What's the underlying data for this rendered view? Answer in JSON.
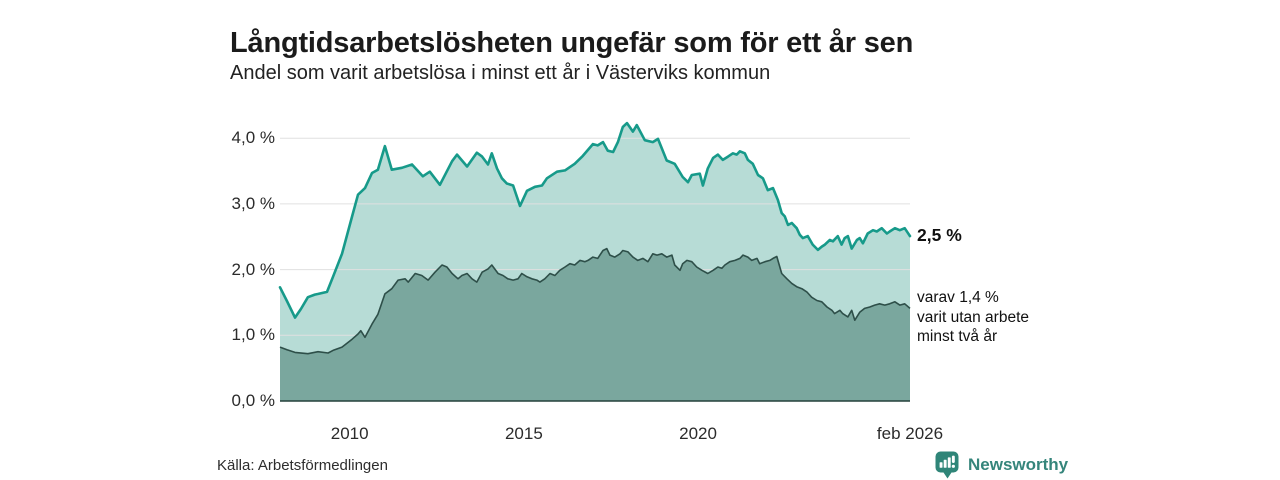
{
  "title": "Långtidsarbetslösheten ungefär som för ett år sen",
  "subtitle": "Andel som varit arbetslösa i minst ett år i Västerviks kommun",
  "source": "Källa: Arbetsförmedlingen",
  "brand": {
    "name": "Newsworthy",
    "icon": "newsworthy-pin-chart-icon",
    "color": "#35857b"
  },
  "colors": {
    "gridline": "#e0e0e0",
    "axis": "#25413c",
    "tick_text": "#2b2b2b",
    "title_text": "#1b1b1b"
  },
  "chart_data": {
    "type": "area",
    "title": "Långtidsarbetslösheten ungefär som för ett år sen",
    "subtitle": "Andel som varit arbetslösa i minst ett år i Västerviks kommun",
    "x_domain": [
      2008.0,
      2026.083
    ],
    "ylim": [
      0,
      4.43
    ],
    "grid": "horizontal",
    "y_gridlines": [
      1,
      2,
      3,
      4
    ],
    "y_ticks": [
      {
        "label": "0,0 %",
        "v": 0
      },
      {
        "label": "1,0 %",
        "v": 1
      },
      {
        "label": "2,0 %",
        "v": 2
      },
      {
        "label": "3,0 %",
        "v": 3
      },
      {
        "label": "4,0 %",
        "v": 4
      }
    ],
    "x_ticks": [
      {
        "label": "2010",
        "t": 2010
      },
      {
        "label": "2015",
        "t": 2015
      },
      {
        "label": "2020",
        "t": 2020
      },
      {
        "label": "feb 2026",
        "t": 2026.083
      }
    ],
    "end_labels": {
      "total": "2,5 %",
      "two_years_1": "varav 1,4 %",
      "two_years_2": "varit utan arbete",
      "two_years_3": "minst två år"
    },
    "series": [
      {
        "name": "andel_minst_ett_ar",
        "last_value": "2,5 %",
        "line": "#179a8a",
        "fill": "#b7dcd6",
        "points": [
          [
            2008.0,
            1.73
          ],
          [
            2008.2,
            1.52
          ],
          [
            2008.43,
            1.27
          ],
          [
            2008.6,
            1.4
          ],
          [
            2008.8,
            1.58
          ],
          [
            2009.0,
            1.62
          ],
          [
            2009.1,
            1.63
          ],
          [
            2009.35,
            1.66
          ],
          [
            2009.52,
            1.89
          ],
          [
            2009.78,
            2.24
          ],
          [
            2010.07,
            2.81
          ],
          [
            2010.24,
            3.14
          ],
          [
            2010.44,
            3.24
          ],
          [
            2010.64,
            3.47
          ],
          [
            2010.81,
            3.52
          ],
          [
            2011.01,
            3.88
          ],
          [
            2011.21,
            3.52
          ],
          [
            2011.5,
            3.55
          ],
          [
            2011.79,
            3.6
          ],
          [
            2012.1,
            3.42
          ],
          [
            2012.3,
            3.49
          ],
          [
            2012.59,
            3.29
          ],
          [
            2012.94,
            3.65
          ],
          [
            2013.08,
            3.75
          ],
          [
            2013.37,
            3.57
          ],
          [
            2013.65,
            3.78
          ],
          [
            2013.8,
            3.72
          ],
          [
            2013.97,
            3.6
          ],
          [
            2014.08,
            3.77
          ],
          [
            2014.23,
            3.54
          ],
          [
            2014.37,
            3.39
          ],
          [
            2014.51,
            3.31
          ],
          [
            2014.69,
            3.28
          ],
          [
            2014.89,
            2.97
          ],
          [
            2015.09,
            3.2
          ],
          [
            2015.32,
            3.26
          ],
          [
            2015.52,
            3.28
          ],
          [
            2015.66,
            3.39
          ],
          [
            2015.95,
            3.49
          ],
          [
            2016.18,
            3.51
          ],
          [
            2016.46,
            3.61
          ],
          [
            2016.69,
            3.73
          ],
          [
            2016.98,
            3.91
          ],
          [
            2017.12,
            3.89
          ],
          [
            2017.27,
            3.94
          ],
          [
            2017.41,
            3.81
          ],
          [
            2017.56,
            3.79
          ],
          [
            2017.7,
            3.94
          ],
          [
            2017.84,
            4.17
          ],
          [
            2017.96,
            4.23
          ],
          [
            2018.13,
            4.1
          ],
          [
            2018.24,
            4.2
          ],
          [
            2018.47,
            3.97
          ],
          [
            2018.7,
            3.94
          ],
          [
            2018.85,
            3.99
          ],
          [
            2019.1,
            3.66
          ],
          [
            2019.33,
            3.61
          ],
          [
            2019.56,
            3.41
          ],
          [
            2019.71,
            3.33
          ],
          [
            2019.82,
            3.44
          ],
          [
            2020.05,
            3.46
          ],
          [
            2020.14,
            3.28
          ],
          [
            2020.28,
            3.54
          ],
          [
            2020.43,
            3.7
          ],
          [
            2020.57,
            3.75
          ],
          [
            2020.71,
            3.67
          ],
          [
            2020.86,
            3.72
          ],
          [
            2021.0,
            3.77
          ],
          [
            2021.11,
            3.75
          ],
          [
            2021.2,
            3.8
          ],
          [
            2021.34,
            3.77
          ],
          [
            2021.43,
            3.67
          ],
          [
            2021.57,
            3.61
          ],
          [
            2021.72,
            3.44
          ],
          [
            2021.86,
            3.39
          ],
          [
            2022.0,
            3.21
          ],
          [
            2022.15,
            3.24
          ],
          [
            2022.29,
            3.06
          ],
          [
            2022.4,
            2.86
          ],
          [
            2022.49,
            2.81
          ],
          [
            2022.58,
            2.68
          ],
          [
            2022.69,
            2.71
          ],
          [
            2022.83,
            2.63
          ],
          [
            2022.92,
            2.53
          ],
          [
            2023.01,
            2.48
          ],
          [
            2023.15,
            2.51
          ],
          [
            2023.29,
            2.38
          ],
          [
            2023.44,
            2.3
          ],
          [
            2023.55,
            2.35
          ],
          [
            2023.64,
            2.38
          ],
          [
            2023.78,
            2.45
          ],
          [
            2023.87,
            2.43
          ],
          [
            2024.01,
            2.51
          ],
          [
            2024.12,
            2.38
          ],
          [
            2024.21,
            2.48
          ],
          [
            2024.3,
            2.51
          ],
          [
            2024.41,
            2.32
          ],
          [
            2024.56,
            2.45
          ],
          [
            2024.64,
            2.48
          ],
          [
            2024.73,
            2.4
          ],
          [
            2024.87,
            2.55
          ],
          [
            2025.02,
            2.6
          ],
          [
            2025.13,
            2.58
          ],
          [
            2025.27,
            2.63
          ],
          [
            2025.42,
            2.55
          ],
          [
            2025.5,
            2.58
          ],
          [
            2025.65,
            2.63
          ],
          [
            2025.79,
            2.6
          ],
          [
            2025.93,
            2.63
          ],
          [
            2026.02,
            2.56
          ],
          [
            2026.083,
            2.51
          ]
        ]
      },
      {
        "name": "andel_minst_tva_ar",
        "last_value": "1,4 %",
        "line": "#2e4f49",
        "fill": "#7aa79e",
        "points": [
          [
            2008.0,
            0.82
          ],
          [
            2008.2,
            0.78
          ],
          [
            2008.43,
            0.74
          ],
          [
            2008.8,
            0.72
          ],
          [
            2009.09,
            0.75
          ],
          [
            2009.38,
            0.73
          ],
          [
            2009.52,
            0.77
          ],
          [
            2009.78,
            0.82
          ],
          [
            2010.07,
            0.94
          ],
          [
            2010.24,
            1.02
          ],
          [
            2010.32,
            1.07
          ],
          [
            2010.44,
            0.97
          ],
          [
            2010.64,
            1.17
          ],
          [
            2010.81,
            1.32
          ],
          [
            2011.01,
            1.63
          ],
          [
            2011.21,
            1.71
          ],
          [
            2011.39,
            1.84
          ],
          [
            2011.59,
            1.86
          ],
          [
            2011.68,
            1.81
          ],
          [
            2011.88,
            1.94
          ],
          [
            2012.07,
            1.91
          ],
          [
            2012.25,
            1.84
          ],
          [
            2012.45,
            1.96
          ],
          [
            2012.65,
            2.07
          ],
          [
            2012.79,
            2.04
          ],
          [
            2012.94,
            1.94
          ],
          [
            2013.11,
            1.86
          ],
          [
            2013.22,
            1.91
          ],
          [
            2013.37,
            1.94
          ],
          [
            2013.51,
            1.86
          ],
          [
            2013.65,
            1.81
          ],
          [
            2013.8,
            1.96
          ],
          [
            2013.97,
            2.01
          ],
          [
            2014.08,
            2.07
          ],
          [
            2014.26,
            1.94
          ],
          [
            2014.4,
            1.91
          ],
          [
            2014.54,
            1.86
          ],
          [
            2014.69,
            1.84
          ],
          [
            2014.83,
            1.86
          ],
          [
            2014.94,
            1.94
          ],
          [
            2015.09,
            1.89
          ],
          [
            2015.23,
            1.86
          ],
          [
            2015.37,
            1.84
          ],
          [
            2015.46,
            1.81
          ],
          [
            2015.6,
            1.86
          ],
          [
            2015.75,
            1.94
          ],
          [
            2015.89,
            1.91
          ],
          [
            2016.03,
            1.99
          ],
          [
            2016.18,
            2.04
          ],
          [
            2016.32,
            2.09
          ],
          [
            2016.46,
            2.07
          ],
          [
            2016.61,
            2.14
          ],
          [
            2016.75,
            2.12
          ],
          [
            2016.84,
            2.14
          ],
          [
            2016.98,
            2.19
          ],
          [
            2017.12,
            2.17
          ],
          [
            2017.27,
            2.29
          ],
          [
            2017.38,
            2.32
          ],
          [
            2017.47,
            2.22
          ],
          [
            2017.61,
            2.19
          ],
          [
            2017.76,
            2.24
          ],
          [
            2017.84,
            2.29
          ],
          [
            2017.99,
            2.27
          ],
          [
            2018.13,
            2.19
          ],
          [
            2018.27,
            2.14
          ],
          [
            2018.42,
            2.17
          ],
          [
            2018.56,
            2.12
          ],
          [
            2018.7,
            2.24
          ],
          [
            2018.82,
            2.22
          ],
          [
            2018.96,
            2.24
          ],
          [
            2019.1,
            2.19
          ],
          [
            2019.25,
            2.22
          ],
          [
            2019.33,
            2.07
          ],
          [
            2019.48,
            1.99
          ],
          [
            2019.56,
            2.09
          ],
          [
            2019.68,
            2.14
          ],
          [
            2019.82,
            2.12
          ],
          [
            2019.96,
            2.04
          ],
          [
            2020.11,
            1.99
          ],
          [
            2020.28,
            1.94
          ],
          [
            2020.43,
            1.99
          ],
          [
            2020.57,
            2.04
          ],
          [
            2020.68,
            2.02
          ],
          [
            2020.77,
            2.07
          ],
          [
            2020.91,
            2.12
          ],
          [
            2021.06,
            2.14
          ],
          [
            2021.2,
            2.17
          ],
          [
            2021.29,
            2.22
          ],
          [
            2021.43,
            2.19
          ],
          [
            2021.54,
            2.14
          ],
          [
            2021.69,
            2.17
          ],
          [
            2021.77,
            2.09
          ],
          [
            2021.92,
            2.12
          ],
          [
            2022.06,
            2.14
          ],
          [
            2022.15,
            2.17
          ],
          [
            2022.26,
            2.2
          ],
          [
            2022.4,
            1.94
          ],
          [
            2022.55,
            1.86
          ],
          [
            2022.69,
            1.79
          ],
          [
            2022.83,
            1.74
          ],
          [
            2022.98,
            1.71
          ],
          [
            2023.12,
            1.66
          ],
          [
            2023.26,
            1.58
          ],
          [
            2023.41,
            1.53
          ],
          [
            2023.55,
            1.51
          ],
          [
            2023.7,
            1.43
          ],
          [
            2023.84,
            1.38
          ],
          [
            2023.92,
            1.33
          ],
          [
            2024.07,
            1.38
          ],
          [
            2024.15,
            1.33
          ],
          [
            2024.3,
            1.28
          ],
          [
            2024.41,
            1.38
          ],
          [
            2024.5,
            1.23
          ],
          [
            2024.64,
            1.35
          ],
          [
            2024.78,
            1.41
          ],
          [
            2024.93,
            1.43
          ],
          [
            2025.07,
            1.46
          ],
          [
            2025.21,
            1.48
          ],
          [
            2025.36,
            1.46
          ],
          [
            2025.5,
            1.48
          ],
          [
            2025.65,
            1.51
          ],
          [
            2025.79,
            1.46
          ],
          [
            2025.93,
            1.48
          ],
          [
            2026.083,
            1.41
          ]
        ]
      }
    ]
  }
}
